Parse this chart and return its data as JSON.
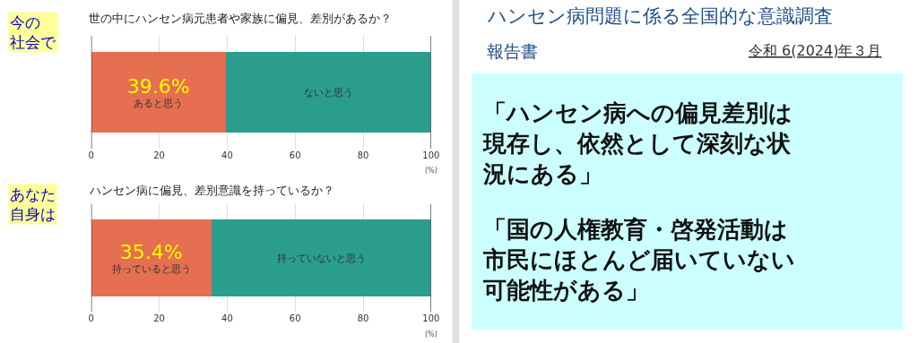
{
  "chart_data": [
    {
      "type": "bar",
      "orientation": "horizontal",
      "stacked": true,
      "title": "世の中にハンセン病元患者や家族に偏見、差別があるか？",
      "annotations": [
        "今の社会で"
      ],
      "categories": [
        null
      ],
      "xlabel": "(%)",
      "xlim": [
        0,
        100
      ],
      "xticks": [
        0,
        20,
        40,
        60,
        80,
        100
      ],
      "grid": "x",
      "series": [
        {
          "name": "あると思う",
          "color": "#e56f50",
          "values": [
            39.6
          ],
          "value_labels": [
            "39.6%"
          ]
        },
        {
          "name": "ないと思う",
          "color": "#2a9d8c",
          "values": [
            60.4
          ],
          "value_labels": [
            null
          ]
        }
      ]
    },
    {
      "type": "bar",
      "orientation": "horizontal",
      "stacked": true,
      "title": "ハンセン病に偏見、差別意識を持っているか？",
      "annotations": [
        "あなた自身は"
      ],
      "categories": [
        null
      ],
      "xlabel": "(%)",
      "xlim": [
        0,
        100
      ],
      "xticks": [
        0,
        20,
        40,
        60,
        80,
        100
      ],
      "grid": "x",
      "series": [
        {
          "name": "持っていると思う",
          "color": "#e56f50",
          "values": [
            35.4
          ],
          "value_labels": [
            "35.4%"
          ]
        },
        {
          "name": "持っていないと思う",
          "color": "#2a9d8c",
          "values": [
            64.6
          ],
          "value_labels": [
            null
          ]
        }
      ]
    },
    {
      "type": "other",
      "title": "ハンセン病問題に係る全国的な意識調査",
      "subtitle": "報告書",
      "annotations": [
        "令和 6(2024)年３月",
        "「ハンセン病への偏見差別は現存し、依然として深刻な状況にある」",
        "「国の人権教育・啓発活動は市民にほとんど届いていない可能性がある」"
      ]
    }
  ]
}
